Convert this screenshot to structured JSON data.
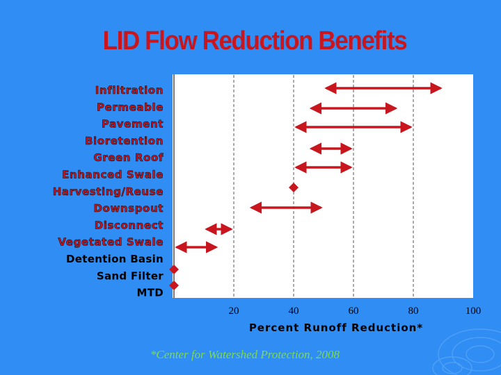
{
  "slide": {
    "title": "LID Flow Reduction Benefits",
    "footnote": "*Center for Watershed Protection, 2008"
  },
  "colors": {
    "background": "#2f8df4",
    "accent_red": "#c8161f",
    "footnote_green": "#7ed957",
    "plot_white": "#ffffff"
  },
  "chart_data": {
    "type": "range",
    "xlabel": "Percent Runoff Reduction*",
    "xlim": [
      0,
      100
    ],
    "xticks": [
      20,
      40,
      60,
      80,
      100
    ],
    "grid": "vertical dashed",
    "y_labels": [
      {
        "text": "Infiltration",
        "style": "red"
      },
      {
        "text": "Permeable",
        "style": "red"
      },
      {
        "text": "Pavement",
        "style": "red"
      },
      {
        "text": "Bioretention",
        "style": "red"
      },
      {
        "text": "Green Roof",
        "style": "red"
      },
      {
        "text": "Enhanced Swale",
        "style": "red"
      },
      {
        "text": "Harvesting/Reuse",
        "style": "red"
      },
      {
        "text": "Downspout",
        "style": "red"
      },
      {
        "text": "Disconnect",
        "style": "red"
      },
      {
        "text": "Vegetated Swale",
        "style": "red"
      },
      {
        "text": "Detention Basin",
        "style": "black"
      },
      {
        "text": "Sand Filter",
        "style": "black"
      },
      {
        "text": "MTD",
        "style": "black"
      }
    ],
    "series": [
      {
        "category": "Infiltration",
        "mark": "range",
        "low": 50,
        "high": 90
      },
      {
        "category": "Permeable Pavement",
        "mark": "range",
        "low": 45,
        "high": 75
      },
      {
        "category": "Bioretention",
        "mark": "range",
        "low": 40,
        "high": 80
      },
      {
        "category": "Green Roof",
        "mark": "range",
        "low": 45,
        "high": 60
      },
      {
        "category": "Enhanced Swale",
        "mark": "range",
        "low": 40,
        "high": 60
      },
      {
        "category": "Harvesting/Reuse",
        "mark": "point",
        "value": 40
      },
      {
        "category": "Downspout Disconnect",
        "mark": "range",
        "low": 25,
        "high": 50
      },
      {
        "category": "Vegetated Swale",
        "mark": "range",
        "low": 10,
        "high": 20
      },
      {
        "category": "Detention Basin",
        "mark": "range",
        "low": 0,
        "high": 15
      },
      {
        "category": "Sand Filter",
        "mark": "point",
        "value": 0
      },
      {
        "category": "MTD",
        "mark": "point",
        "value": 0
      }
    ]
  }
}
